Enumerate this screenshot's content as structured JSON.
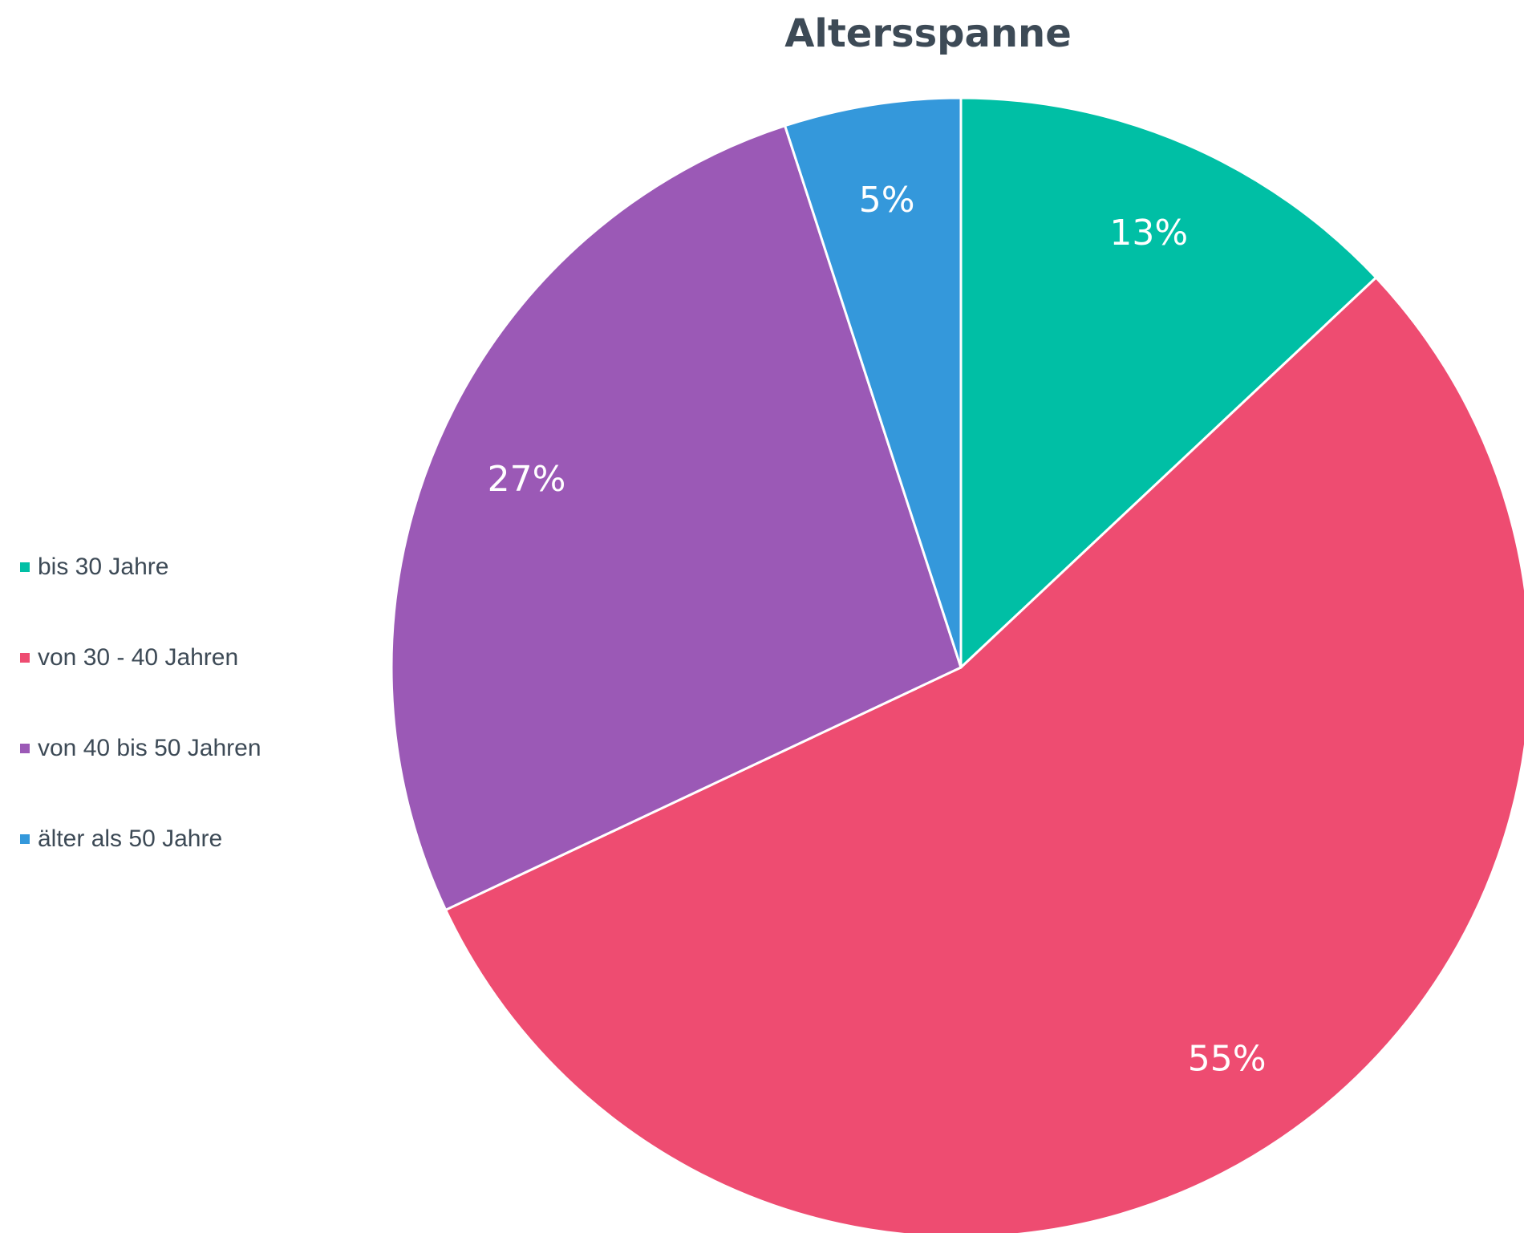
{
  "chart_data": {
    "type": "pie",
    "title": "Altersspanne",
    "categories": [
      "bis 30 Jahre",
      "von 30 - 40 Jahren",
      "von 40 bis 50 Jahren",
      "älter als 50 Jahre"
    ],
    "values": [
      13,
      55,
      27,
      5
    ],
    "value_labels": [
      "13%",
      "55%",
      "27%",
      "5%"
    ],
    "colors": [
      "#00bfa5",
      "#ee4c71",
      "#9b59b6",
      "#3498db"
    ],
    "start": "top",
    "direction": "clockwise",
    "legend_position": "left"
  }
}
